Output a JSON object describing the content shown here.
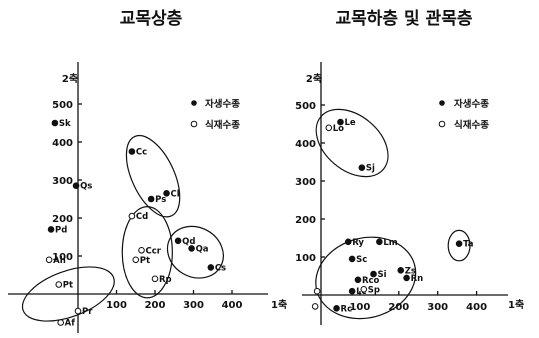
{
  "chart_data": [
    {
      "type": "scatter",
      "title": "교목상층",
      "xlabel": "1축",
      "ylabel": "2축",
      "xticks": [
        "100",
        "200",
        "300",
        "400"
      ],
      "yticks": [
        "100",
        "200",
        "300",
        "400",
        "500"
      ],
      "xlim": [
        -120,
        460
      ],
      "ylim": [
        -130,
        600
      ],
      "grid": false,
      "legend": {
        "position": "top-right",
        "entries": [
          {
            "marker": "filled",
            "label": "자생수종"
          },
          {
            "marker": "open",
            "label": "식재수종"
          }
        ]
      },
      "series": [
        {
          "marker": "filled",
          "points": [
            {
              "label": "Sk",
              "x": -60,
              "y": 450
            },
            {
              "label": "Qs",
              "x": -5,
              "y": 285
            },
            {
              "label": "Pd",
              "x": -70,
              "y": 170
            },
            {
              "label": "Cc",
              "x": 140,
              "y": 375
            },
            {
              "label": "Ps",
              "x": 190,
              "y": 250
            },
            {
              "label": "Cl",
              "x": 230,
              "y": 265
            },
            {
              "label": "Qd",
              "x": 260,
              "y": 140
            },
            {
              "label": "Qa",
              "x": 295,
              "y": 120
            },
            {
              "label": "Cs",
              "x": 345,
              "y": 70
            }
          ]
        },
        {
          "marker": "open",
          "points": [
            {
              "label": "Ah",
              "x": -75,
              "y": 90
            },
            {
              "label": "Pt",
              "x": -50,
              "y": 25
            },
            {
              "label": "Af",
              "x": -45,
              "y": -75
            },
            {
              "label": "Pr",
              "x": 0,
              "y": -45
            },
            {
              "label": "Cd",
              "x": 140,
              "y": 205
            },
            {
              "label": "Ccr",
              "x": 165,
              "y": 115
            },
            {
              "label": "Pt",
              "x": 150,
              "y": 90
            },
            {
              "label": "Rp",
              "x": 200,
              "y": 40
            }
          ]
        }
      ],
      "groups": [
        {
          "center": [
            -25,
            0
          ],
          "rx": 125,
          "ry": 60,
          "rotate": -20
        },
        {
          "center": [
            195,
            310
          ],
          "rx": 55,
          "ry": 115,
          "rotate": -25
        },
        {
          "center": [
            180,
            110
          ],
          "rx": 65,
          "ry": 120,
          "rotate": 0
        },
        {
          "center": [
            305,
            110
          ],
          "rx": 75,
          "ry": 65,
          "rotate": 30
        }
      ]
    },
    {
      "type": "scatter",
      "title": "교목하층 및 관목층",
      "xlabel": "1축",
      "ylabel": "2축",
      "xticks": [
        "100",
        "200",
        "300",
        "400"
      ],
      "yticks": [
        "100",
        "200",
        "300",
        "400",
        "500"
      ],
      "xlim": [
        -60,
        540
      ],
      "ylim": [
        -70,
        600
      ],
      "grid": false,
      "legend": {
        "position": "top-right",
        "entries": [
          {
            "marker": "filled",
            "label": "자생수종"
          },
          {
            "marker": "open",
            "label": "식재수종"
          }
        ]
      },
      "series": [
        {
          "marker": "filled",
          "points": [
            {
              "label": "Le",
              "x": 50,
              "y": 455
            },
            {
              "label": "Sj",
              "x": 105,
              "y": 335
            },
            {
              "label": "Ry",
              "x": 70,
              "y": 140
            },
            {
              "label": "Lm",
              "x": 150,
              "y": 140
            },
            {
              "label": "Sc",
              "x": 80,
              "y": 95
            },
            {
              "label": "Si",
              "x": 135,
              "y": 55
            },
            {
              "label": "Rco",
              "x": 95,
              "y": 40
            },
            {
              "label": "Lc",
              "x": 80,
              "y": 10
            },
            {
              "label": "Zs",
              "x": 205,
              "y": 65
            },
            {
              "label": "Rn",
              "x": 220,
              "y": 45
            },
            {
              "label": "Ta",
              "x": 355,
              "y": 135
            },
            {
              "label": "Rc",
              "x": 40,
              "y": -35
            }
          ]
        },
        {
          "marker": "open",
          "points": [
            {
              "label": "Lo",
              "x": 20,
              "y": 440
            },
            {
              "label": "Sp",
              "x": 110,
              "y": 15
            },
            {
              "label": "",
              "x": -10,
              "y": 10
            },
            {
              "label": "",
              "x": -15,
              "y": -30
            }
          ]
        }
      ],
      "groups": [
        {
          "center": [
            80,
            400
          ],
          "rx": 105,
          "ry": 72,
          "rotate": 40
        },
        {
          "center": [
            115,
            45
          ],
          "rx": 130,
          "ry": 105,
          "rotate": -15
        },
        {
          "center": [
            355,
            130
          ],
          "rx": 28,
          "ry": 40,
          "rotate": 0
        }
      ]
    }
  ]
}
